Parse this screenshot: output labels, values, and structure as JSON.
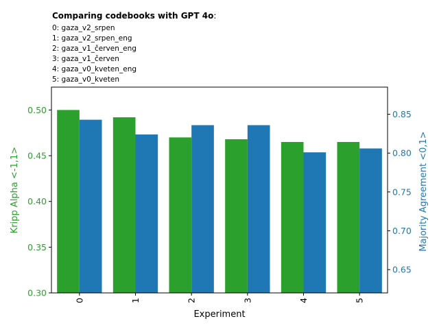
{
  "chart_data": {
    "type": "bar",
    "title_bold": "Comparing codebooks with GPT 4o",
    "title_suffix": ":",
    "legend_lines": [
      "0: gaza_v2_srpen",
      "1: gaza_v2_srpen_eng",
      "2: gaza_v1_červen_eng",
      "3: gaza_v1_červen",
      "4: gaza_v0_kveten_eng",
      "5: gaza_v0_kveten"
    ],
    "categories": [
      "0",
      "1",
      "2",
      "3",
      "4",
      "5"
    ],
    "xlabel": "Experiment",
    "series": [
      {
        "name": "Kripp Alpha <-1,1>",
        "axis": "left",
        "color": "#2ca02c",
        "values": [
          0.5,
          0.492,
          0.47,
          0.468,
          0.465,
          0.465
        ]
      },
      {
        "name": "Majority Agreement <0,1>",
        "axis": "right",
        "color": "#1f77b4",
        "values": [
          0.843,
          0.824,
          0.836,
          0.836,
          0.801,
          0.806
        ]
      }
    ],
    "left_axis": {
      "label": "Kripp Alpha <-1,1>",
      "color": "#2ca02c",
      "ylim": [
        0.3,
        0.525
      ],
      "ticks": [
        0.3,
        0.35,
        0.4,
        0.45,
        0.5
      ],
      "tick_labels": [
        "0.30",
        "0.35",
        "0.40",
        "0.45",
        "0.50"
      ]
    },
    "right_axis": {
      "label": "Majority Agreement <0,1>",
      "color": "#1f77b4",
      "ylim": [
        0.62,
        0.885
      ],
      "ticks": [
        0.65,
        0.7,
        0.75,
        0.8,
        0.85
      ],
      "tick_labels": [
        "0.65",
        "0.70",
        "0.75",
        "0.80",
        "0.85"
      ]
    }
  }
}
